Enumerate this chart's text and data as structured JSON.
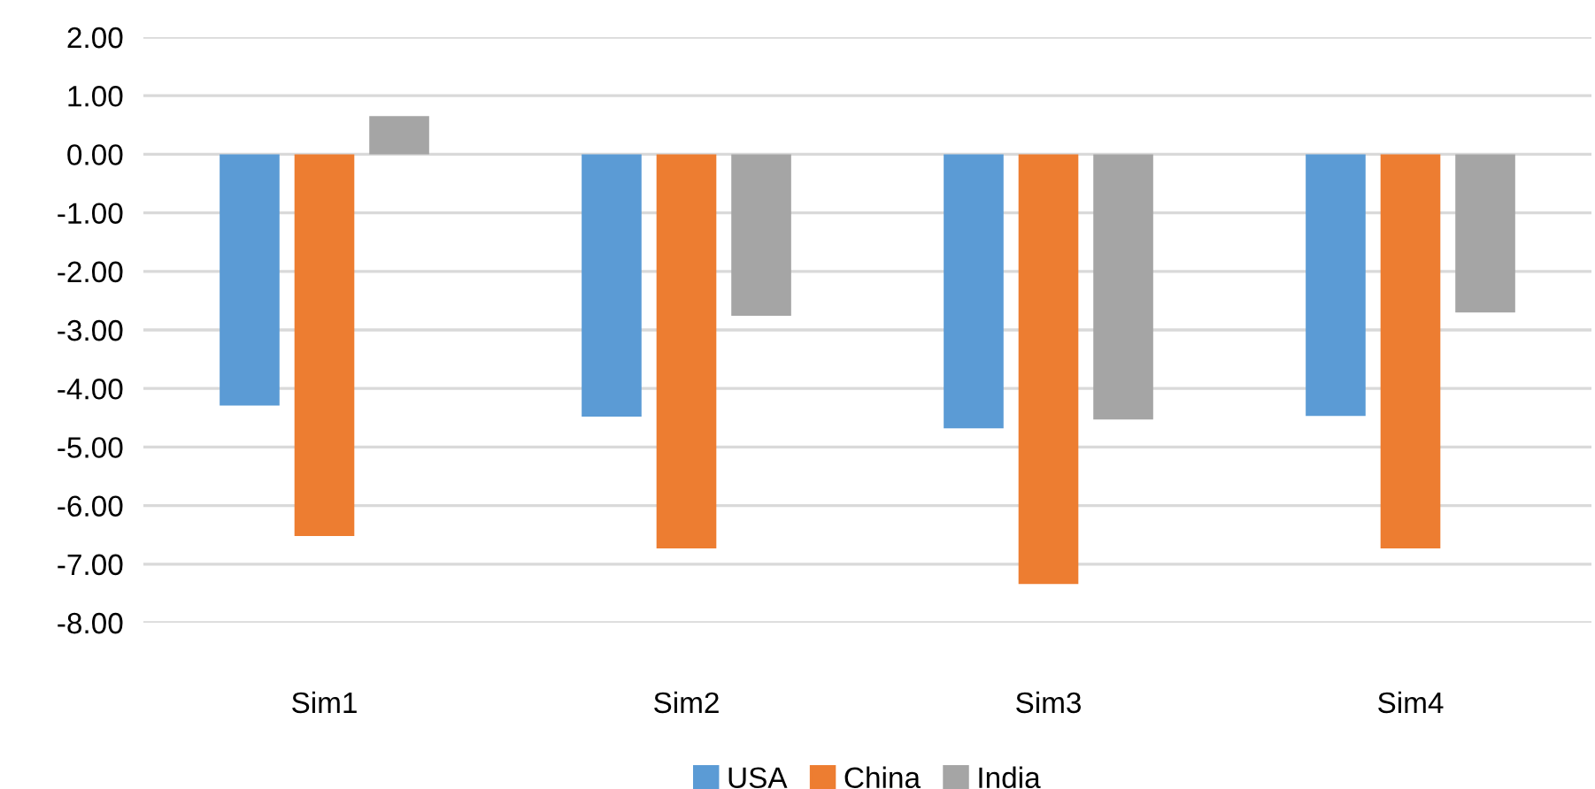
{
  "chart_data": {
    "type": "bar",
    "categories": [
      "Sim1",
      "Sim2",
      "Sim3",
      "Sim4"
    ],
    "series": [
      {
        "name": "USA",
        "color": "#5b9bd5",
        "values": [
          -4.29,
          -4.48,
          -4.68,
          -4.47
        ]
      },
      {
        "name": "China",
        "color": "#ed7d31",
        "values": [
          -6.52,
          -6.73,
          -7.34,
          -6.73
        ]
      },
      {
        "name": "India",
        "color": "#a5a5a5",
        "values": [
          0.65,
          -2.76,
          -4.53,
          -2.7
        ]
      }
    ],
    "ylim": [
      -8,
      2
    ],
    "yticks": [
      {
        "value": -8,
        "label": "-8.00"
      },
      {
        "value": -7,
        "label": "-7.00"
      },
      {
        "value": -6,
        "label": "-6.00"
      },
      {
        "value": -5,
        "label": "-5.00"
      },
      {
        "value": -4,
        "label": "-4.00"
      },
      {
        "value": -3,
        "label": "-3.00"
      },
      {
        "value": -2,
        "label": "-2.00"
      },
      {
        "value": -1,
        "label": "-1.00"
      },
      {
        "value": 0,
        "label": "0.00"
      },
      {
        "value": 1,
        "label": "1.00"
      },
      {
        "value": 2,
        "label": "2.00"
      }
    ],
    "grid": "y",
    "legend": "bottom"
  }
}
